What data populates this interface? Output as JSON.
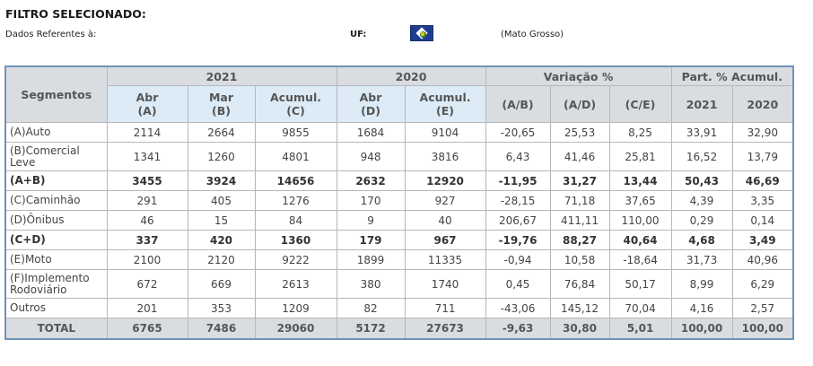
{
  "filter": {
    "title": "FILTRO SELECIONADO:",
    "reference_label": "Dados Referentes à:",
    "uf_label": "UF:",
    "flag_icon": "mato-grosso-flag-icon",
    "state": "(Mato Grosso)"
  },
  "table": {
    "segments_header": "Segmentos",
    "groups": [
      "2021",
      "2020",
      "Variação %",
      "Part. % Acumul."
    ],
    "columns": [
      [
        "Abr",
        "(A)"
      ],
      [
        "Mar",
        "(B)"
      ],
      [
        "Acumul.",
        "(C)"
      ],
      [
        "Abr",
        "(D)"
      ],
      [
        "Acumul.",
        "(E)"
      ],
      "(A/B)",
      "(A/D)",
      "(C/E)",
      "2021",
      "2020"
    ],
    "rows": [
      {
        "segment": "(A)Auto",
        "values": [
          "2114",
          "2664",
          "9855",
          "1684",
          "9104",
          "-20,65",
          "25,53",
          "8,25",
          "33,91",
          "32,90"
        ]
      },
      {
        "segment": "(B)Comercial Leve",
        "values": [
          "1341",
          "1260",
          "4801",
          "948",
          "3816",
          "6,43",
          "41,46",
          "25,81",
          "16,52",
          "13,79"
        ]
      },
      {
        "segment": "(A+B)",
        "values": [
          "3455",
          "3924",
          "14656",
          "2632",
          "12920",
          "-11,95",
          "31,27",
          "13,44",
          "50,43",
          "46,69"
        ]
      },
      {
        "segment": "(C)Caminhão",
        "values": [
          "291",
          "405",
          "1276",
          "170",
          "927",
          "-28,15",
          "71,18",
          "37,65",
          "4,39",
          "3,35"
        ]
      },
      {
        "segment": "(D)Ônibus",
        "values": [
          "46",
          "15",
          "84",
          "9",
          "40",
          "206,67",
          "411,11",
          "110,00",
          "0,29",
          "0,14"
        ]
      },
      {
        "segment": "(C+D)",
        "values": [
          "337",
          "420",
          "1360",
          "179",
          "967",
          "-19,76",
          "88,27",
          "40,64",
          "4,68",
          "3,49"
        ]
      },
      {
        "segment": "(E)Moto",
        "values": [
          "2100",
          "2120",
          "9222",
          "1899",
          "11335",
          "-0,94",
          "10,58",
          "-18,64",
          "31,73",
          "40,96"
        ]
      },
      {
        "segment": "(F)Implemento Rodoviário",
        "values": [
          "672",
          "669",
          "2613",
          "380",
          "1740",
          "0,45",
          "76,84",
          "50,17",
          "8,99",
          "6,29"
        ]
      },
      {
        "segment": "Outros",
        "values": [
          "201",
          "353",
          "1209",
          "82",
          "711",
          "-43,06",
          "145,12",
          "70,04",
          "4,16",
          "2,57"
        ]
      },
      {
        "segment": "TOTAL",
        "values": [
          "6765",
          "7486",
          "29060",
          "5172",
          "27673",
          "-9,63",
          "30,80",
          "5,01",
          "100,00",
          "100,00"
        ]
      }
    ]
  }
}
